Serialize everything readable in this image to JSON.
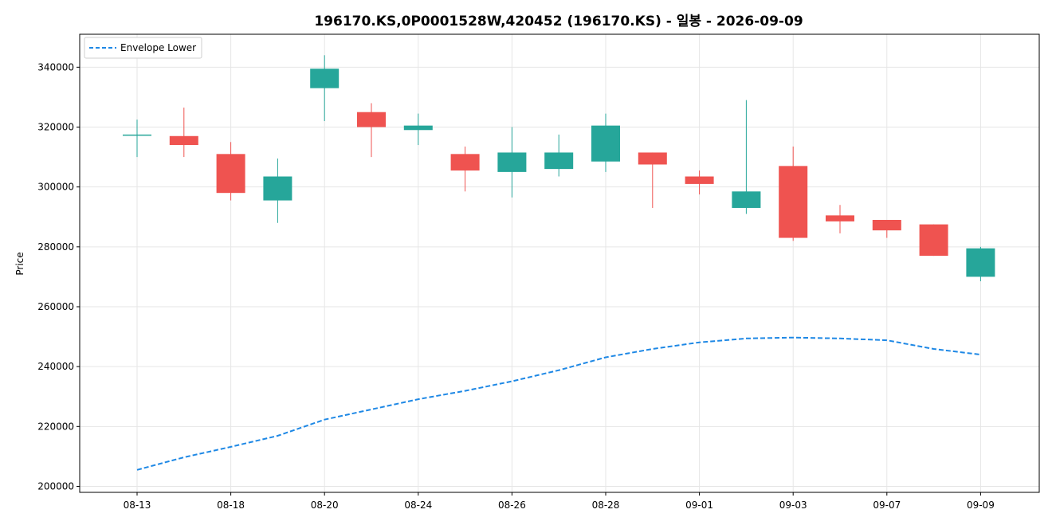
{
  "chart_data": {
    "type": "candlestick",
    "title": "196170.KS,0P0001528W,420452 (196170.KS) - 일봉 - 2026-09-09",
    "xlabel": "",
    "ylabel": "Price",
    "ylim": [
      198000,
      351000
    ],
    "yticks": [
      200000,
      220000,
      240000,
      260000,
      280000,
      300000,
      320000,
      340000
    ],
    "ytick_labels": [
      "200000",
      "220000",
      "240000",
      "260000",
      "280000",
      "300000",
      "320000",
      "340000"
    ],
    "grid": true,
    "legend_position": "top-left",
    "colors": {
      "up": "#26a69a",
      "down": "#ef5350",
      "envelope": "#1e88e5",
      "grid": "#e6e6e6"
    },
    "dates": [
      "08-13",
      "08-14",
      "08-18",
      "08-19",
      "08-20",
      "08-21",
      "08-24",
      "08-25",
      "08-26",
      "08-27",
      "08-28",
      "08-31",
      "09-01",
      "09-02",
      "09-03",
      "09-04",
      "09-07",
      "09-08",
      "09-09"
    ],
    "xtick_labels": [
      "08-13",
      "08-18",
      "08-20",
      "08-24",
      "08-26",
      "08-28",
      "09-01",
      "09-03",
      "09-07",
      "09-09"
    ],
    "xtick_indices": [
      0,
      2,
      4,
      6,
      8,
      10,
      12,
      14,
      16,
      18
    ],
    "candles": [
      {
        "open": 317500,
        "high": 322500,
        "low": 310000,
        "close": 317500
      },
      {
        "open": 317000,
        "high": 326500,
        "low": 310000,
        "close": 314000
      },
      {
        "open": 311000,
        "high": 315000,
        "low": 295500,
        "close": 298000
      },
      {
        "open": 295500,
        "high": 309500,
        "low": 288000,
        "close": 303500
      },
      {
        "open": 333000,
        "high": 344000,
        "low": 322000,
        "close": 339500
      },
      {
        "open": 325000,
        "high": 328000,
        "low": 310000,
        "close": 320000
      },
      {
        "open": 319000,
        "high": 324500,
        "low": 314000,
        "close": 320500
      },
      {
        "open": 311000,
        "high": 313500,
        "low": 298500,
        "close": 305500
      },
      {
        "open": 305000,
        "high": 320000,
        "low": 296500,
        "close": 311500
      },
      {
        "open": 306000,
        "high": 317500,
        "low": 303500,
        "close": 311500
      },
      {
        "open": 308500,
        "high": 324500,
        "low": 305000,
        "close": 320500
      },
      {
        "open": 311500,
        "high": 311500,
        "low": 293000,
        "close": 307500
      },
      {
        "open": 303500,
        "high": 305500,
        "low": 297500,
        "close": 301000
      },
      {
        "open": 293000,
        "high": 329000,
        "low": 291000,
        "close": 298500
      },
      {
        "open": 307000,
        "high": 313500,
        "low": 282000,
        "close": 283000
      },
      {
        "open": 290500,
        "high": 294000,
        "low": 284500,
        "close": 288500
      },
      {
        "open": 289000,
        "high": 289000,
        "low": 283000,
        "close": 285500
      },
      {
        "open": 287500,
        "high": 287500,
        "low": 277000,
        "close": 277000
      },
      {
        "open": 270000,
        "high": 280000,
        "low": 268500,
        "close": 279500
      }
    ],
    "series": [
      {
        "name": "Envelope Lower",
        "style": "dashed",
        "values": [
          205500,
          209700,
          213200,
          216900,
          222300,
          225700,
          229100,
          231900,
          235100,
          238800,
          243100,
          245900,
          248100,
          249400,
          249700,
          249400,
          248800,
          245900,
          244000
        ]
      }
    ]
  }
}
